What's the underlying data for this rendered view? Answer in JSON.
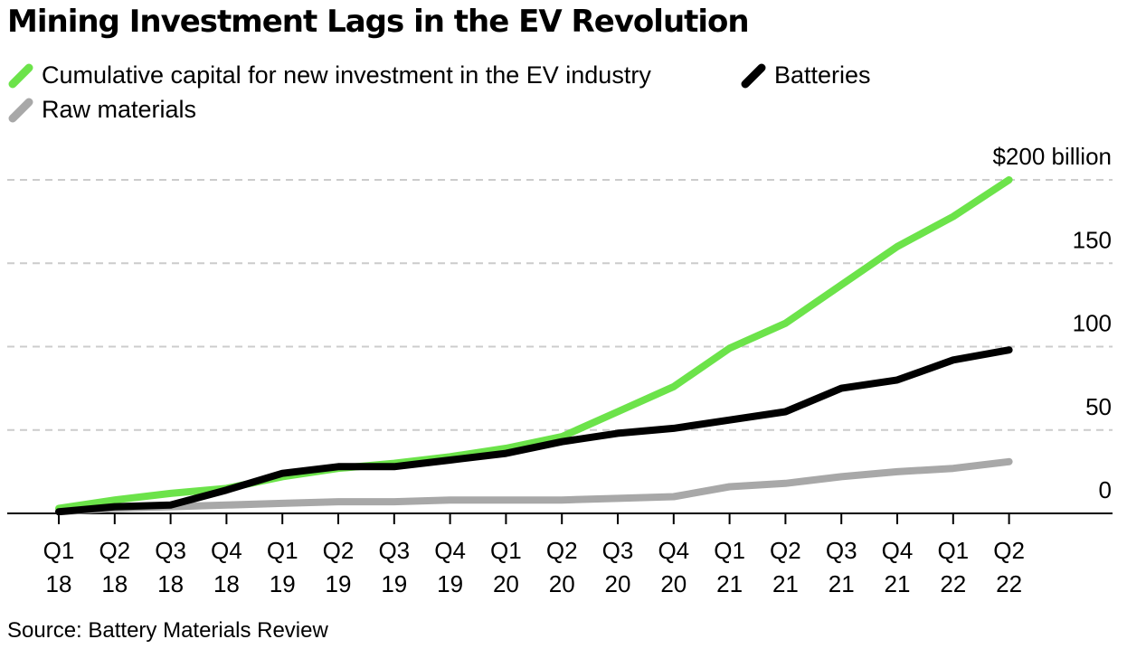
{
  "title": "Mining Investment Lags in the EV Revolution",
  "source": "Source: Battery Materials Review",
  "chart_data": {
    "type": "line",
    "title": "Mining Investment Lags in the EV Revolution",
    "xlabel": "",
    "ylabel": "",
    "x": [
      "Q1 18",
      "Q2 18",
      "Q3 18",
      "Q4 18",
      "Q1 19",
      "Q2 19",
      "Q3 19",
      "Q4 19",
      "Q1 20",
      "Q2 20",
      "Q3 20",
      "Q4 20",
      "Q1 21",
      "Q2 21",
      "Q3 21",
      "Q4 21",
      "Q1 22",
      "Q2 22"
    ],
    "x_labels": [
      {
        "q": "Q1",
        "y": "18"
      },
      {
        "q": "Q2",
        "y": "18"
      },
      {
        "q": "Q3",
        "y": "18"
      },
      {
        "q": "Q4",
        "y": "18"
      },
      {
        "q": "Q1",
        "y": "19"
      },
      {
        "q": "Q2",
        "y": "19"
      },
      {
        "q": "Q3",
        "y": "19"
      },
      {
        "q": "Q4",
        "y": "19"
      },
      {
        "q": "Q1",
        "y": "20"
      },
      {
        "q": "Q2",
        "y": "20"
      },
      {
        "q": "Q3",
        "y": "20"
      },
      {
        "q": "Q4",
        "y": "20"
      },
      {
        "q": "Q1",
        "y": "21"
      },
      {
        "q": "Q2",
        "y": "21"
      },
      {
        "q": "Q3",
        "y": "21"
      },
      {
        "q": "Q4",
        "y": "21"
      },
      {
        "q": "Q1",
        "y": "22"
      },
      {
        "q": "Q2",
        "y": "22"
      }
    ],
    "y_ticks": [
      0,
      50,
      100,
      150,
      200
    ],
    "y_tick_labels": [
      "0",
      "50",
      "100",
      "150",
      "$200 billion"
    ],
    "ylim": [
      0,
      200
    ],
    "grid": true,
    "legend_position": "top-left",
    "series": [
      {
        "name": "Cumulative capital for new investment in the EV industry",
        "color": "#6ce34a",
        "values": [
          3,
          8,
          12,
          15,
          22,
          27,
          30,
          34,
          39,
          46,
          61,
          76,
          99,
          114,
          137,
          160,
          178,
          200
        ]
      },
      {
        "name": "Batteries",
        "color": "#000000",
        "values": [
          1,
          4,
          5,
          14,
          24,
          28,
          28,
          32,
          36,
          43,
          48,
          51,
          56,
          61,
          75,
          80,
          92,
          98
        ]
      },
      {
        "name": "Raw materials",
        "color": "#a8a8a8",
        "values": [
          1,
          3,
          4,
          5,
          6,
          7,
          7,
          8,
          8,
          8,
          9,
          10,
          16,
          18,
          22,
          25,
          27,
          31
        ]
      }
    ]
  }
}
